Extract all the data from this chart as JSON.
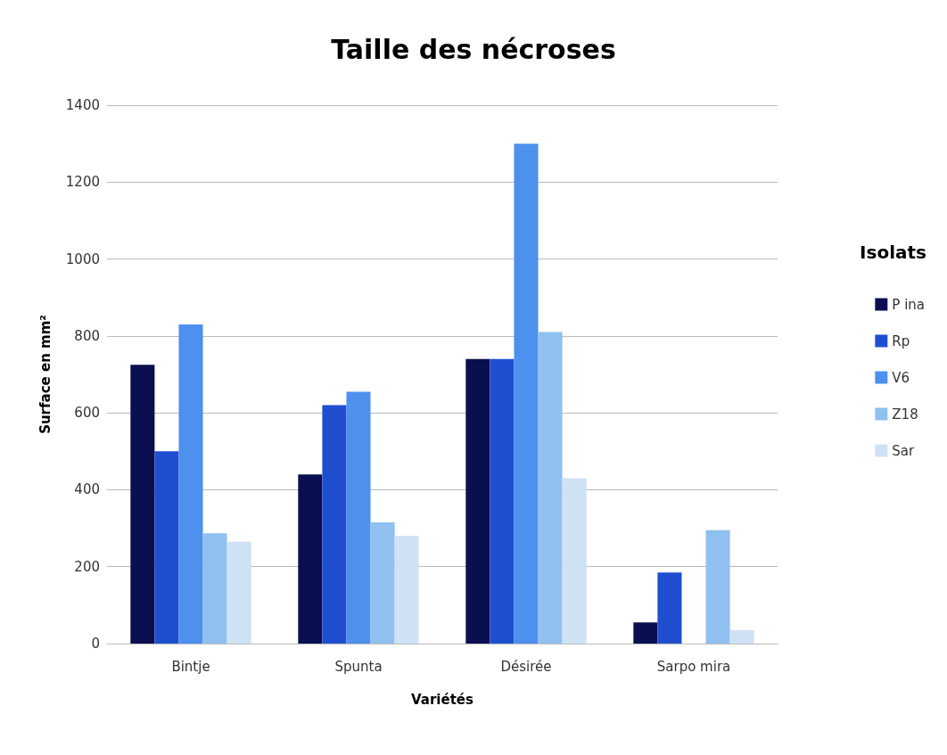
{
  "chart_data": {
    "type": "bar",
    "title": "Taille des nécroses",
    "xlabel": "Variétés",
    "ylabel": "Surface en mm²",
    "legend_title": "Isolats",
    "categories": [
      "Bintje",
      "Spunta",
      "Désirée",
      "Sarpo mira"
    ],
    "series": [
      {
        "name": "P ina",
        "color": "#0a0f4f",
        "values": [
          725,
          440,
          740,
          55
        ]
      },
      {
        "name": "Rp",
        "color": "#1f4fd0",
        "values": [
          500,
          620,
          740,
          185
        ]
      },
      {
        "name": "V6",
        "color": "#4d90ee",
        "values": [
          830,
          655,
          1300,
          0
        ]
      },
      {
        "name": "Z18",
        "color": "#8fc0f0",
        "values": [
          287,
          315,
          810,
          295
        ]
      },
      {
        "name": "Sar",
        "color": "#cfe2f5",
        "values": [
          265,
          280,
          430,
          35
        ]
      }
    ],
    "ylim": [
      0,
      1400
    ],
    "yticks": [
      0,
      200,
      400,
      600,
      800,
      1000,
      1200,
      1400
    ],
    "grid": "y",
    "legend": "right"
  }
}
